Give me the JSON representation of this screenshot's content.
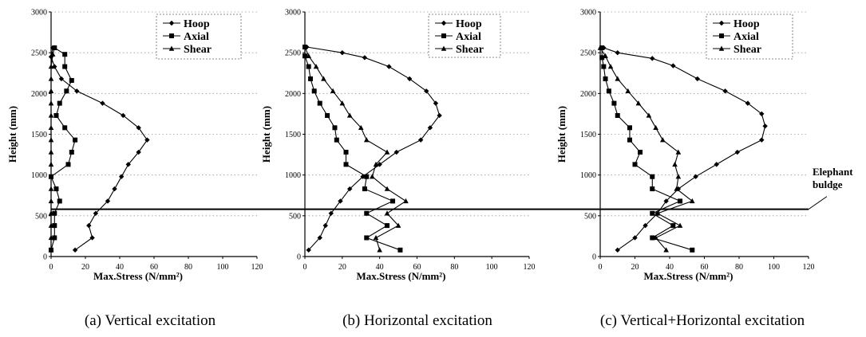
{
  "chart_data": [
    {
      "type": "line",
      "caption": "(a) Vertical excitation",
      "xlabel": "Max.Stress (N/mm²)",
      "ylabel": "Height (mm)",
      "xlim": [
        0,
        120
      ],
      "ylim": [
        0,
        3000
      ],
      "x_ticks": [
        0,
        20,
        40,
        60,
        80,
        100,
        120
      ],
      "y_ticks": [
        0,
        500,
        1000,
        1500,
        2000,
        2500,
        3000
      ],
      "grid": "horizontal dotted",
      "legend_position": "top-right",
      "series": [
        {
          "name": "Hoop",
          "marker": "diamond",
          "points": [
            [
              14,
              80
            ],
            [
              24,
              230
            ],
            [
              22,
              380
            ],
            [
              26,
              530
            ],
            [
              33,
              680
            ],
            [
              37,
              830
            ],
            [
              41,
              980
            ],
            [
              45,
              1130
            ],
            [
              51,
              1280
            ],
            [
              56,
              1430
            ],
            [
              51,
              1580
            ],
            [
              42,
              1730
            ],
            [
              30,
              1880
            ],
            [
              15,
              2030
            ],
            [
              6,
              2180
            ],
            [
              2,
              2330
            ],
            [
              0,
              2450
            ],
            [
              1,
              2560
            ]
          ]
        },
        {
          "name": "Axial",
          "marker": "square",
          "points": [
            [
              0,
              80
            ],
            [
              2,
              230
            ],
            [
              2,
              380
            ],
            [
              2,
              530
            ],
            [
              5,
              680
            ],
            [
              3,
              830
            ],
            [
              0,
              980
            ],
            [
              10,
              1130
            ],
            [
              12,
              1280
            ],
            [
              14,
              1430
            ],
            [
              8,
              1580
            ],
            [
              3,
              1730
            ],
            [
              5,
              1880
            ],
            [
              9,
              2030
            ],
            [
              12,
              2160
            ],
            [
              8,
              2330
            ],
            [
              8,
              2480
            ],
            [
              2,
              2560
            ]
          ]
        },
        {
          "name": "Shear",
          "marker": "triangle",
          "points": [
            [
              0,
              80
            ],
            [
              0,
              230
            ],
            [
              0,
              380
            ],
            [
              0,
              530
            ],
            [
              0,
              680
            ],
            [
              0,
              830
            ],
            [
              0,
              980
            ],
            [
              0,
              1130
            ],
            [
              0,
              1280
            ],
            [
              0,
              1430
            ],
            [
              0,
              1580
            ],
            [
              0,
              1730
            ],
            [
              0,
              1880
            ],
            [
              0,
              2030
            ],
            [
              0,
              2180
            ],
            [
              0,
              2330
            ],
            [
              1,
              2480
            ],
            [
              2,
              2560
            ]
          ]
        }
      ]
    },
    {
      "type": "line",
      "caption": "(b) Horizontal excitation",
      "xlabel": "Max.Stress (N/mm²)",
      "ylabel": "Height (mm)",
      "xlim": [
        0,
        120
      ],
      "ylim": [
        0,
        3000
      ],
      "x_ticks": [
        0,
        20,
        40,
        60,
        80,
        100,
        120
      ],
      "y_ticks": [
        0,
        500,
        1000,
        1500,
        2000,
        2500,
        3000
      ],
      "grid": "horizontal dotted",
      "legend_position": "top-right",
      "series": [
        {
          "name": "Hoop",
          "marker": "diamond",
          "points": [
            [
              2,
              80
            ],
            [
              8,
              230
            ],
            [
              11,
              380
            ],
            [
              14,
              530
            ],
            [
              19,
              680
            ],
            [
              24,
              830
            ],
            [
              31,
              980
            ],
            [
              40,
              1130
            ],
            [
              49,
              1280
            ],
            [
              62,
              1430
            ],
            [
              67,
              1580
            ],
            [
              72,
              1730
            ],
            [
              70,
              1880
            ],
            [
              65,
              2030
            ],
            [
              56,
              2180
            ],
            [
              45,
              2330
            ],
            [
              32,
              2440
            ],
            [
              20,
              2500
            ],
            [
              1,
              2570
            ]
          ]
        },
        {
          "name": "Axial",
          "marker": "square",
          "points": [
            [
              51,
              80
            ],
            [
              33,
              230
            ],
            [
              44,
              380
            ],
            [
              33,
              530
            ],
            [
              47,
              680
            ],
            [
              32,
              830
            ],
            [
              33,
              980
            ],
            [
              22,
              1130
            ],
            [
              22,
              1280
            ],
            [
              17,
              1430
            ],
            [
              16,
              1580
            ],
            [
              12,
              1730
            ],
            [
              8,
              1880
            ],
            [
              5,
              2030
            ],
            [
              3,
              2180
            ],
            [
              2,
              2330
            ],
            [
              0,
              2460
            ],
            [
              0,
              2570
            ]
          ]
        },
        {
          "name": "Shear",
          "marker": "triangle",
          "points": [
            [
              40,
              80
            ],
            [
              38,
              230
            ],
            [
              50,
              380
            ],
            [
              44,
              530
            ],
            [
              54,
              680
            ],
            [
              44,
              830
            ],
            [
              36,
              980
            ],
            [
              38,
              1130
            ],
            [
              44,
              1280
            ],
            [
              33,
              1430
            ],
            [
              30,
              1580
            ],
            [
              24,
              1730
            ],
            [
              20,
              1880
            ],
            [
              15,
              2030
            ],
            [
              10,
              2180
            ],
            [
              6,
              2330
            ],
            [
              2,
              2460
            ],
            [
              0,
              2570
            ]
          ]
        }
      ]
    },
    {
      "type": "line",
      "caption": "(c) Vertical+Horizontal excitation",
      "xlabel": "Max.Stress (N/mm²)",
      "ylabel": "Height (mm)",
      "xlim": [
        0,
        120
      ],
      "ylim": [
        0,
        3000
      ],
      "x_ticks": [
        0,
        20,
        40,
        60,
        80,
        100,
        120
      ],
      "y_ticks": [
        0,
        500,
        1000,
        1500,
        2000,
        2500,
        3000
      ],
      "grid": "horizontal dotted",
      "legend_position": "top-right",
      "series": [
        {
          "name": "Hoop",
          "marker": "diamond",
          "points": [
            [
              10,
              80
            ],
            [
              20,
              230
            ],
            [
              26,
              380
            ],
            [
              33,
              530
            ],
            [
              38,
              680
            ],
            [
              45,
              830
            ],
            [
              55,
              980
            ],
            [
              67,
              1130
            ],
            [
              79,
              1280
            ],
            [
              93,
              1430
            ],
            [
              95,
              1600
            ],
            [
              93,
              1750
            ],
            [
              85,
              1880
            ],
            [
              72,
              2030
            ],
            [
              56,
              2180
            ],
            [
              42,
              2340
            ],
            [
              30,
              2430
            ],
            [
              10,
              2500
            ],
            [
              2,
              2560
            ]
          ]
        },
        {
          "name": "Axial",
          "marker": "square",
          "points": [
            [
              53,
              80
            ],
            [
              30,
              230
            ],
            [
              42,
              380
            ],
            [
              30,
              530
            ],
            [
              46,
              680
            ],
            [
              30,
              830
            ],
            [
              30,
              980
            ],
            [
              20,
              1130
            ],
            [
              23,
              1280
            ],
            [
              17,
              1430
            ],
            [
              17,
              1580
            ],
            [
              10,
              1730
            ],
            [
              8,
              1880
            ],
            [
              5,
              2030
            ],
            [
              3,
              2180
            ],
            [
              2,
              2330
            ],
            [
              1,
              2440
            ],
            [
              1,
              2560
            ]
          ]
        },
        {
          "name": "Shear",
          "marker": "triangle",
          "points": [
            [
              38,
              80
            ],
            [
              32,
              230
            ],
            [
              46,
              380
            ],
            [
              33,
              530
            ],
            [
              53,
              680
            ],
            [
              44,
              830
            ],
            [
              45,
              980
            ],
            [
              43,
              1130
            ],
            [
              45,
              1280
            ],
            [
              36,
              1430
            ],
            [
              32,
              1580
            ],
            [
              28,
              1730
            ],
            [
              22,
              1880
            ],
            [
              16,
              2030
            ],
            [
              10,
              2180
            ],
            [
              6,
              2330
            ],
            [
              3,
              2460
            ],
            [
              0,
              2560
            ]
          ]
        }
      ]
    }
  ],
  "annotation": {
    "text_line1": "Elephant",
    "text_line2": "buldge",
    "height": 580
  },
  "colors": {
    "line": "#000000",
    "background": "#ffffff",
    "grid": "#999999"
  }
}
